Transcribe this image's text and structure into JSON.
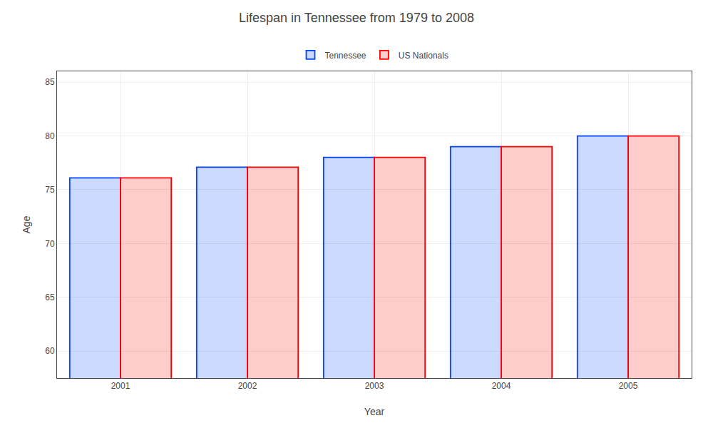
{
  "chart_data": {
    "type": "bar",
    "title": "Lifespan in Tennessee from 1979 to 2008",
    "xlabel": "Year",
    "ylabel": "Age",
    "categories": [
      "2001",
      "2002",
      "2003",
      "2004",
      "2005"
    ],
    "series": [
      {
        "name": "Tennessee",
        "color": "#0044ff",
        "values": [
          76.1,
          77.1,
          78.0,
          79.0,
          80.0
        ]
      },
      {
        "name": "US Nationals",
        "color": "#ff0000",
        "values": [
          76.1,
          77.1,
          78.0,
          79.0,
          80.0
        ]
      }
    ],
    "ylim": [
      57.5,
      86
    ],
    "yticks": [
      60,
      65,
      70,
      75,
      80,
      85
    ],
    "grid": true,
    "legend": "top"
  }
}
